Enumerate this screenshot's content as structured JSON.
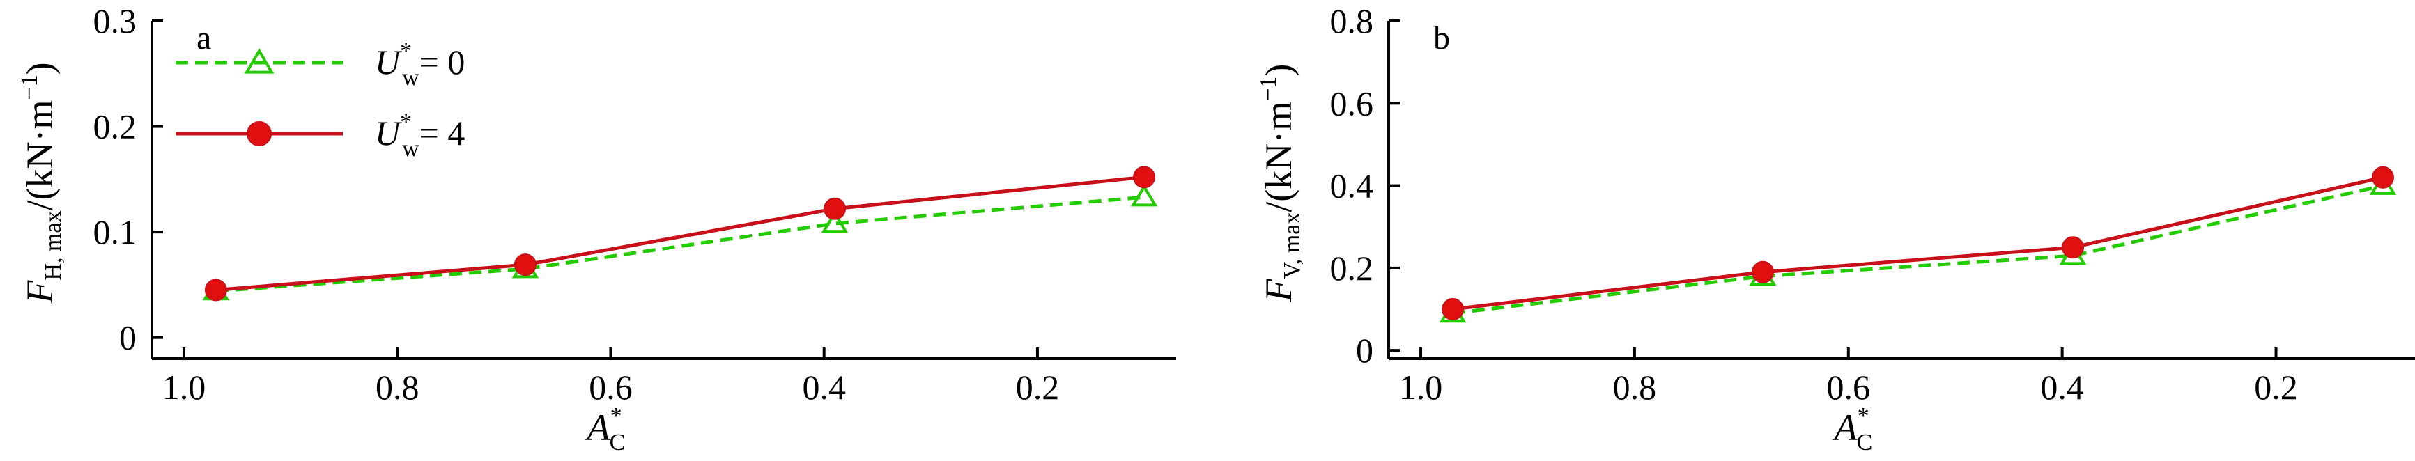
{
  "colors": {
    "u0": "#22cc00",
    "u4": "#c8101a",
    "marker_fill_u4": "#e01010",
    "axis": "#000000"
  },
  "legend": {
    "items": [
      {
        "symbol": "U",
        "sup": "*",
        "sub": "w",
        "rest": "= 0",
        "marker": "triangle",
        "line": "dashed"
      },
      {
        "symbol": "U",
        "sup": "*",
        "sub": "w",
        "rest": "= 4",
        "marker": "circle",
        "line": "solid"
      }
    ]
  },
  "xlabel": {
    "main": "A",
    "sup": "*",
    "sub": "C"
  },
  "chart_data": [
    {
      "type": "line",
      "panel_label": "a",
      "ylabel": {
        "main": "F",
        "sub": "H, max",
        "rest": "/(kN·m",
        "sup": "−1",
        "close": ")"
      },
      "x": [
        0.97,
        0.68,
        0.39,
        0.1
      ],
      "xlim": [
        1.03,
        0.07
      ],
      "xinvert": true,
      "xticks": [
        1.0,
        0.8,
        0.6,
        0.4,
        0.2
      ],
      "xtick_labels": [
        "1.0",
        "0.8",
        "0.6",
        "0.4",
        "0.2"
      ],
      "ylim": [
        -0.02,
        0.3
      ],
      "yticks": [
        0,
        0.1,
        0.2,
        0.3
      ],
      "ytick_labels": [
        "0",
        "0.1",
        "0.2",
        "0.3"
      ],
      "series": [
        {
          "key": "u0",
          "values": [
            0.044,
            0.065,
            0.108,
            0.133
          ]
        },
        {
          "key": "u4",
          "values": [
            0.045,
            0.069,
            0.122,
            0.152
          ]
        }
      ],
      "grid": false,
      "legend_position": "top-left"
    },
    {
      "type": "line",
      "panel_label": "b",
      "ylabel": {
        "main": "F",
        "sub": "V, max",
        "rest": "/(kN·m",
        "sup": "−1",
        "close": ")"
      },
      "x": [
        0.97,
        0.68,
        0.39,
        0.1
      ],
      "xlim": [
        1.03,
        0.07
      ],
      "xinvert": true,
      "xticks": [
        1.0,
        0.8,
        0.6,
        0.4,
        0.2
      ],
      "xtick_labels": [
        "1.0",
        "0.8",
        "0.6",
        "0.4",
        "0.2"
      ],
      "ylim": [
        -0.02,
        0.8
      ],
      "yticks": [
        0,
        0.2,
        0.4,
        0.6,
        0.8
      ],
      "ytick_labels": [
        "0",
        "0.2",
        "0.4",
        "0.6",
        "0.8"
      ],
      "series": [
        {
          "key": "u0",
          "values": [
            0.09,
            0.18,
            0.23,
            0.4
          ]
        },
        {
          "key": "u4",
          "values": [
            0.1,
            0.19,
            0.25,
            0.42
          ]
        }
      ],
      "grid": false,
      "legend_position": "none"
    }
  ]
}
